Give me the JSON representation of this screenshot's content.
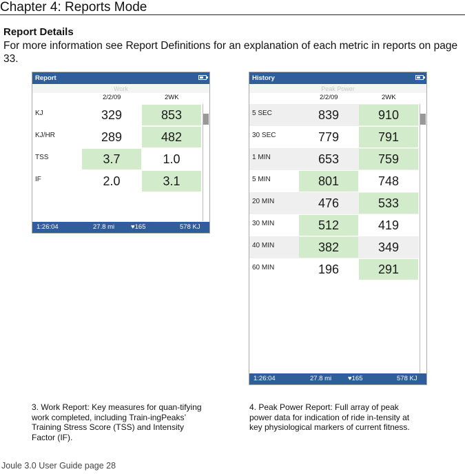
{
  "chapter_title": "Chapter 4: Reports Mode",
  "section_title": "Report Details",
  "intro_text": "For more information see Report Definitions for an explanation of  each metric in reports on page 33.",
  "report_screen": {
    "header": "Report",
    "subtitle": "Work",
    "col_date": "2/2/09",
    "col_period": "2WK",
    "rows": [
      {
        "label": "KJ",
        "v1": "329",
        "v2": "853"
      },
      {
        "label": "KJ/HR",
        "v1": "289",
        "v2": "482"
      },
      {
        "label": "TSS",
        "v1": "3.7",
        "v2": "1.0"
      },
      {
        "label": "IF",
        "v1": "2.0",
        "v2": "3.1"
      }
    ],
    "footer": {
      "time": "1:26:04",
      "distance": "27.8 mi",
      "heart": "165",
      "energy": "578  KJ"
    }
  },
  "history_screen": {
    "header": "History",
    "subtitle": "Peak Power",
    "col_date": "2/2/09",
    "col_period": "2WK",
    "rows": [
      {
        "label": "5 SEC",
        "v1": "839",
        "v2": "910"
      },
      {
        "label": "30 SEC",
        "v1": "779",
        "v2": "791"
      },
      {
        "label": "1 MIN",
        "v1": "653",
        "v2": "759"
      },
      {
        "label": "5 MIN",
        "v1": "801",
        "v2": "748"
      },
      {
        "label": "20 MIN",
        "v1": "476",
        "v2": "533"
      },
      {
        "label": "30 MIN",
        "v1": "512",
        "v2": "419"
      },
      {
        "label": "40 MIN",
        "v1": "382",
        "v2": "349"
      },
      {
        "label": "60 MIN",
        "v1": "196",
        "v2": "291"
      }
    ],
    "footer": {
      "time": "1:26:04",
      "distance": "27.8 mi",
      "heart": "165",
      "energy": "578  KJ"
    }
  },
  "caption_left": "3. Work Report: Key measures for quan-tifying work completed, including Train-ingPeaks’ Training Stress Score (TSS) and Intensity Factor (IF).",
  "caption_right": "4. Peak Power Report: Full array of peak power data for indication of ride in-tensity at key  physiological markers of current fitness.",
  "page_footer": "Joule 3.0 User Guide page 28"
}
